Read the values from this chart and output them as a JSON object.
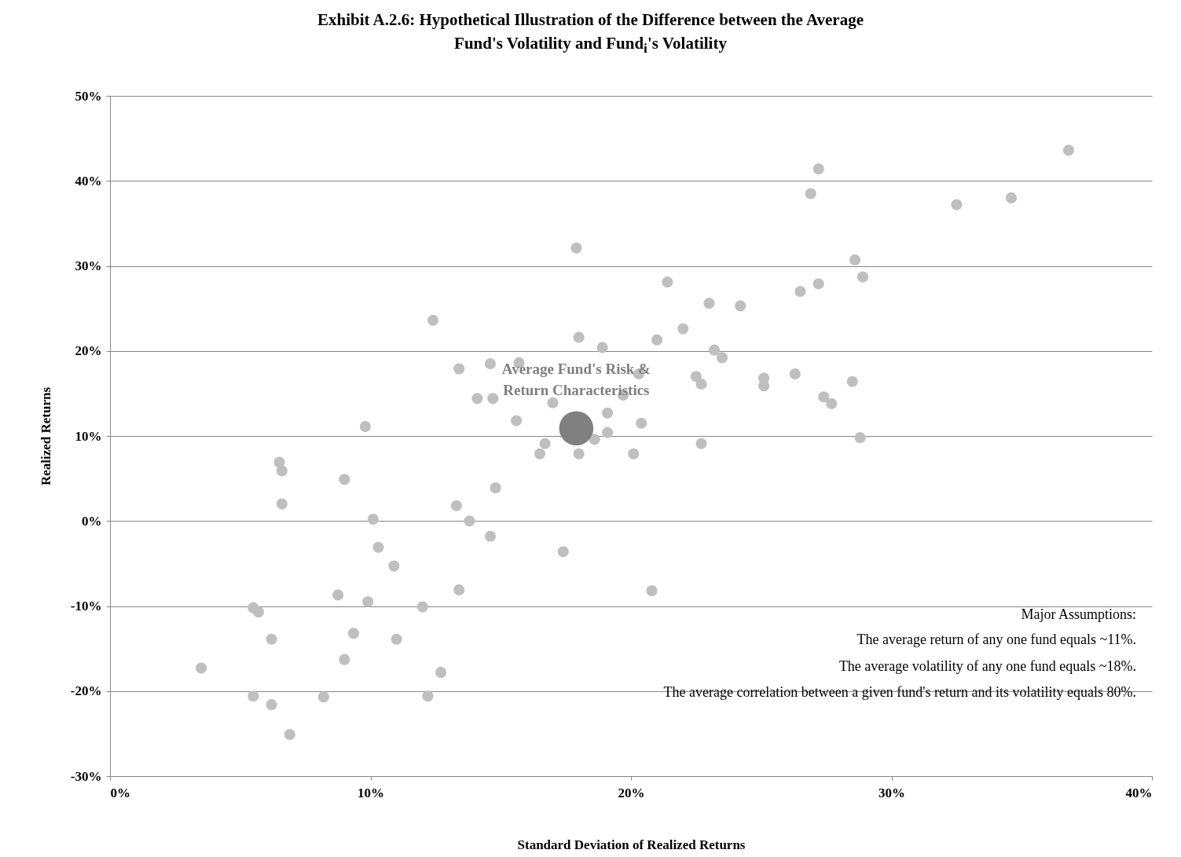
{
  "chart_data": {
    "type": "scatter",
    "title": "Exhibit A.2.6: Hypothetical Illustration of  the Difference between the Average Fund's Volatility and Fund$_{i}$'s Volatility",
    "xlabel": "Standard Deviation of Realized Returns",
    "ylabel": "Realized Returns",
    "xlim": [
      0,
      40
    ],
    "xticks": [
      {
        "value": 0,
        "label": "0%"
      },
      {
        "value": 10,
        "label": "10%"
      },
      {
        "value": 20,
        "label": "20%"
      },
      {
        "value": 30,
        "label": "30%"
      },
      {
        "value": 40,
        "label": "40%"
      }
    ],
    "ylim": [
      -30,
      50
    ],
    "yticks": [
      {
        "value": -30,
        "label": "-30%"
      },
      {
        "value": -20,
        "label": "-20%"
      },
      {
        "value": -10,
        "label": "-10%"
      },
      {
        "value": 0,
        "label": "0%"
      },
      {
        "value": 10,
        "label": "10%"
      },
      {
        "value": 20,
        "label": "20%"
      },
      {
        "value": 30,
        "label": "30%"
      },
      {
        "value": 40,
        "label": "40%"
      },
      {
        "value": 50,
        "label": "50%"
      }
    ],
    "grid": "y",
    "series": [
      {
        "color": "#bfbfbf",
        "x": [
          3.5,
          5.5,
          5.7,
          6.2,
          5.5,
          6.2,
          6.9,
          6.5,
          6.6,
          6.6,
          8.2,
          8.75,
          9.0,
          9.0,
          9.35,
          9.8,
          9.9,
          10.1,
          10.3,
          10.9,
          11.0,
          12.0,
          12.2,
          12.4,
          12.7,
          13.3,
          13.4,
          13.8,
          14.6,
          14.8,
          15.6,
          16.5,
          16.7,
          17.4,
          17.9,
          18.0,
          18.0,
          18.6,
          19.1,
          19.1,
          18.9,
          20.1,
          20.4,
          20.8,
          21.0,
          21.4,
          22.0,
          23.2,
          23.5,
          13.4,
          14.6,
          15.7,
          14.1,
          14.7,
          20.3,
          19.7,
          22.5,
          22.7,
          17.0,
          22.7,
          23.0,
          24.2,
          26.5,
          27.2,
          28.6,
          28.9,
          26.9,
          27.2,
          32.5,
          34.6,
          36.8,
          26.3,
          25.1,
          25.1,
          28.5,
          27.4,
          27.7,
          28.8
        ],
        "values": [
          -17.3,
          -10.2,
          -10.7,
          -13.9,
          -20.6,
          -21.6,
          -25.1,
          6.9,
          5.9,
          2.0,
          -20.7,
          -8.7,
          -16.3,
          4.9,
          -13.2,
          11.1,
          -9.5,
          0.2,
          -3.1,
          -5.3,
          -13.9,
          -10.1,
          -20.6,
          23.6,
          -17.8,
          1.8,
          -8.1,
          0.0,
          -1.8,
          3.9,
          11.8,
          7.9,
          9.1,
          -3.6,
          32.1,
          21.6,
          7.9,
          9.6,
          12.7,
          10.4,
          20.4,
          7.9,
          11.5,
          -8.2,
          21.3,
          28.1,
          22.6,
          20.1,
          19.2,
          17.9,
          18.5,
          18.6,
          14.4,
          14.4,
          17.3,
          14.8,
          17.0,
          16.1,
          13.9,
          9.1,
          25.6,
          25.3,
          27.0,
          27.9,
          30.7,
          28.7,
          38.5,
          41.4,
          37.2,
          38.0,
          43.6,
          17.3,
          16.8,
          15.9,
          16.4,
          14.6,
          13.8,
          9.8
        ]
      },
      {
        "type": "bubble",
        "color": "#808080",
        "x": [
          17.9
        ],
        "values": [
          10.9
        ],
        "sizes": [
          1
        ]
      }
    ],
    "annotations": [
      {
        "text": "Average Fund's Risk & Return Characteristics",
        "x": 17.9,
        "y": 10.9
      },
      "Major Assumptions:",
      "The average return of any one fund equals ~11%.",
      "The average volatility of any one fund equals ~18%.",
      "The average correlation between a given fund's return and its volatility equals 80%."
    ]
  }
}
